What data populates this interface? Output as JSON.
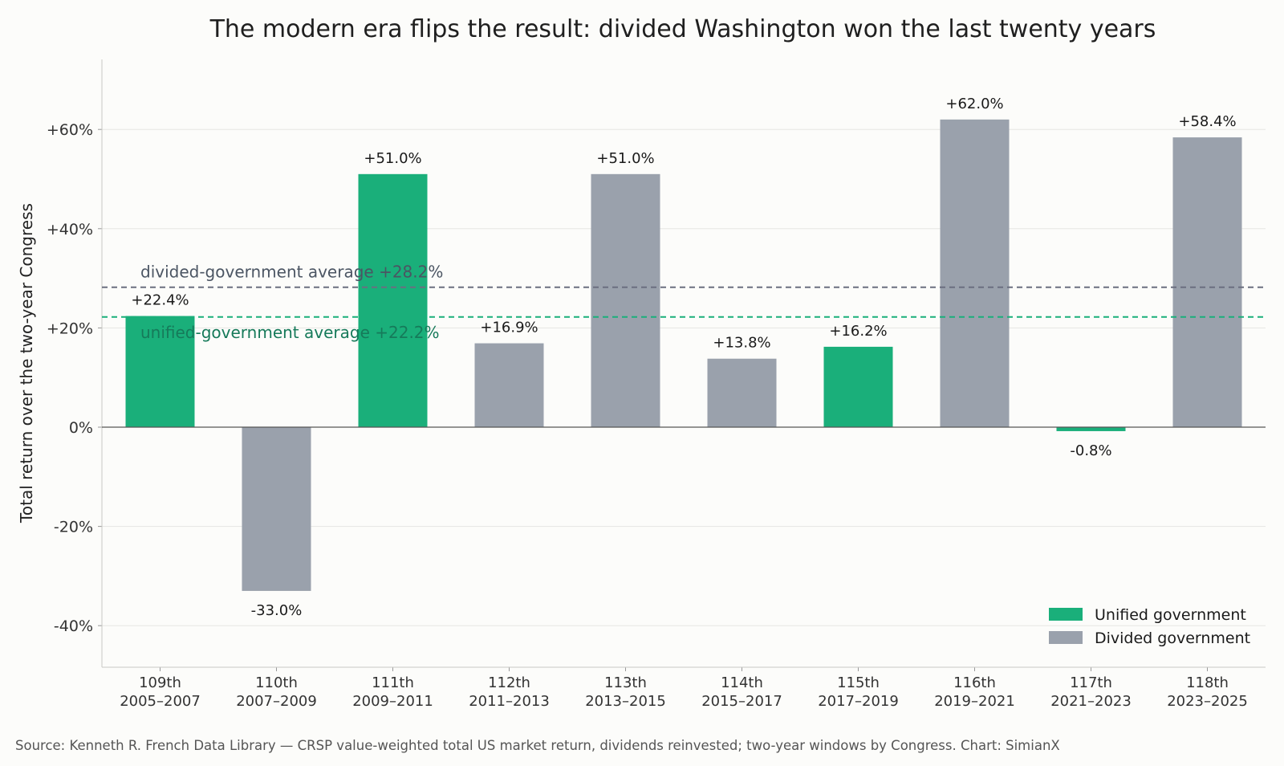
{
  "chart_data": {
    "type": "bar",
    "title": "The modern era flips the result: divided Washington won the last twenty years",
    "ylabel": "Total return over the two-year Congress",
    "xlabel": "",
    "ylim": [
      -48,
      74
    ],
    "yticks": [
      -40,
      -20,
      0,
      20,
      40,
      60
    ],
    "ytick_labels": [
      "-40%",
      "-20%",
      "0%",
      "+20%",
      "+40%",
      "+60%"
    ],
    "grid": "horizontal",
    "categories": [
      {
        "congress": "109th",
        "years": "2005–2007",
        "value": 22.4,
        "label": "+22.4%",
        "government": "unified"
      },
      {
        "congress": "110th",
        "years": "2007–2009",
        "value": -33.0,
        "label": "-33.0%",
        "government": "divided"
      },
      {
        "congress": "111th",
        "years": "2009–2011",
        "value": 51.0,
        "label": "+51.0%",
        "government": "unified"
      },
      {
        "congress": "112th",
        "years": "2011–2013",
        "value": 16.9,
        "label": "+16.9%",
        "government": "divided"
      },
      {
        "congress": "113th",
        "years": "2013–2015",
        "value": 51.0,
        "label": "+51.0%",
        "government": "divided"
      },
      {
        "congress": "114th",
        "years": "2015–2017",
        "value": 13.8,
        "label": "+13.8%",
        "government": "divided"
      },
      {
        "congress": "115th",
        "years": "2017–2019",
        "value": 16.2,
        "label": "+16.2%",
        "government": "unified"
      },
      {
        "congress": "116th",
        "years": "2019–2021",
        "value": 62.0,
        "label": "+62.0%",
        "government": "divided"
      },
      {
        "congress": "117th",
        "years": "2021–2023",
        "value": -0.8,
        "label": "-0.8%",
        "government": "unified"
      },
      {
        "congress": "118th",
        "years": "2023–2025",
        "value": 58.4,
        "label": "+58.4%",
        "government": "divided"
      }
    ],
    "averages": {
      "divided": {
        "value": 28.2,
        "label": "divided-government average  +28.2%",
        "color": "#6b6f80"
      },
      "unified": {
        "value": 22.2,
        "label": "unified-government average  +22.2%",
        "color": "#1aaf7a"
      }
    },
    "legend": {
      "placement": "bottom-right",
      "items": [
        {
          "name": "Unified government",
          "key": "unified"
        },
        {
          "name": "Divided government",
          "key": "divided"
        }
      ]
    },
    "colors": {
      "unified": "#1aaf7a",
      "divided": "#9aa1ac"
    },
    "source": "Source: Kenneth R. French Data Library — CRSP value-weighted total US market return, dividends reinvested; two-year windows by Congress.  Chart: SimianX"
  }
}
